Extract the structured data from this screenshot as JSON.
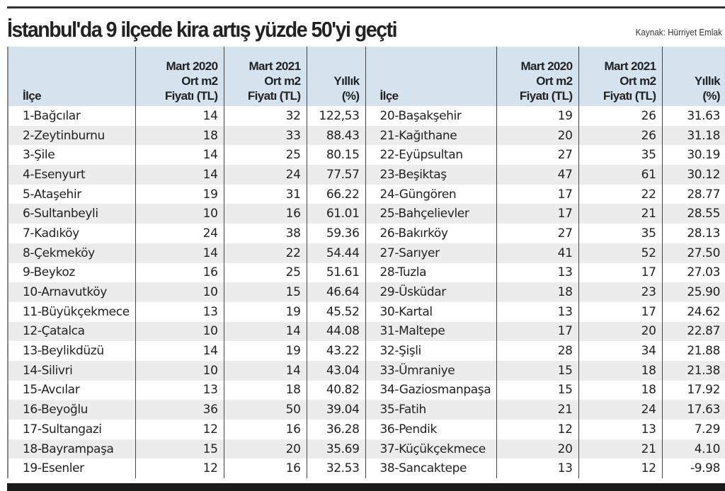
{
  "title": "İstanbul'da 9 ilçede kira artış yüzde 50'yi geçti",
  "source": "Kaynak: Hürriyet Emlak",
  "headers": {
    "ilce": "İlçe",
    "mart2020": [
      "Mart 2020",
      "Ort m2",
      "Fiyatı (TL)"
    ],
    "mart2021": [
      "Mart 2021",
      "Ort m2",
      "Fiyatı (TL)"
    ],
    "yillik": [
      "Yıllık",
      "(%)"
    ]
  },
  "left_rows": [
    [
      "1-Bağcılar",
      "14",
      "32",
      "122,53"
    ],
    [
      "2-Zeytinburnu",
      "18",
      "33",
      "88.43"
    ],
    [
      "3-Şile",
      "14",
      "25",
      "80.15"
    ],
    [
      "4-Esenyurt",
      "14",
      "24",
      "77.57"
    ],
    [
      "5-Ataşehir",
      "19",
      "31",
      "66.22"
    ],
    [
      "6-Sultanbeyli",
      "10",
      "16",
      "61.01"
    ],
    [
      "7-Kadıköy",
      "24",
      "38",
      "59.36"
    ],
    [
      "8-Çekmeköy",
      "14",
      "22",
      "54.44"
    ],
    [
      "9-Beykoz",
      "16",
      "25",
      "51.61"
    ],
    [
      "10-Arnavutköy",
      "10",
      "15",
      "46.64"
    ],
    [
      "11-Büyükçekmece",
      "13",
      "19",
      "45.52"
    ],
    [
      "12-Çatalca",
      "10",
      "14",
      "44.08"
    ],
    [
      "13-Beylikdüzü",
      "14",
      "19",
      "43.22"
    ],
    [
      "14-Silivri",
      "10",
      "14",
      "43.04"
    ],
    [
      "15-Avcılar",
      "13",
      "18",
      "40.82"
    ],
    [
      "16-Beyoğlu",
      "36",
      "50",
      "39.04"
    ],
    [
      "17-Sultangazi",
      "12",
      "16",
      "36.28"
    ],
    [
      "18-Bayrampaşa",
      "15",
      "20",
      "35.69"
    ],
    [
      "19-Esenler",
      "12",
      "16",
      "32.53"
    ]
  ],
  "right_rows": [
    [
      "20-Başakşehir",
      "19",
      "26",
      "31.63"
    ],
    [
      "21-Kağıthane",
      "20",
      "26",
      "31.18"
    ],
    [
      "22-Eyüpsultan",
      "27",
      "35",
      "30.19"
    ],
    [
      "23-Beşiktaş",
      "47",
      "61",
      "30.12"
    ],
    [
      "24-Güngören",
      "17",
      "22",
      "28.77"
    ],
    [
      "25-Bahçelievler",
      "17",
      "21",
      "28.55"
    ],
    [
      "26-Bakırköy",
      "27",
      "35",
      "28.13"
    ],
    [
      "27-Sarıyer",
      "41",
      "52",
      "27.50"
    ],
    [
      "28-Tuzla",
      "13",
      "17",
      "27.03"
    ],
    [
      "29-Üsküdar",
      "18",
      "23",
      "25.90"
    ],
    [
      "30-Kartal",
      "13",
      "17",
      "24.62"
    ],
    [
      "31-Maltepe",
      "17",
      "20",
      "22.87"
    ],
    [
      "32-Şişli",
      "28",
      "34",
      "21.88"
    ],
    [
      "33-Ümraniye",
      "15",
      "18",
      "21.38"
    ],
    [
      "34-Gaziosmanpaşa",
      "15",
      "18",
      "17.92"
    ],
    [
      "35-Fatih",
      "21",
      "24",
      "17.63"
    ],
    [
      "36-Pendik",
      "12",
      "13",
      "7.29"
    ],
    [
      "37-Küçükçekmece",
      "20",
      "21",
      "4.10"
    ],
    [
      "38-Sancaktepe",
      "13",
      "12",
      "-9.98"
    ]
  ]
}
